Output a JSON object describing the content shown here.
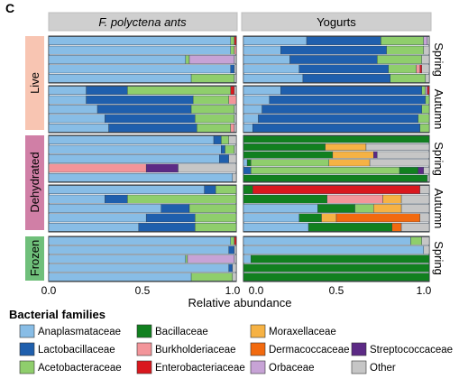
{
  "panel_letter": "C",
  "axis_label": "Relative abundance",
  "legend_title": "Bacterial families",
  "colors": {
    "Anaplasmataceae": "#88bde6",
    "Lactobacillaceae": "#1f5fad",
    "Acetobacteraceae": "#8fce6c",
    "Bacillaceae": "#11801f",
    "Burkholderiaceae": "#f3959a",
    "Enterobacteriaceae": "#d9181e",
    "Moraxellaceae": "#f6b244",
    "Dermacoccaceae": "#f26a0f",
    "Orbaceae": "#c7a3d6",
    "Streptococcaceae": "#5c2a85",
    "Other": "#c6c6c6"
  },
  "chart_data": {
    "type": "bar",
    "orientation": "horizontal-stacked",
    "xlabel": "Relative abundance",
    "xlim": [
      0,
      1
    ],
    "x_ticks": [
      "0.0",
      "0.5",
      "1.0"
    ],
    "columns": [
      "F. polyctena ants",
      "Yogurts"
    ],
    "row_groups": [
      "Live",
      "Dehydrated",
      "Frozen"
    ],
    "row_subgroups": [
      "Spring",
      "Autumn"
    ],
    "legend_items": [
      "Anaplasmataceae",
      "Lactobacillaceae",
      "Acetobacteraceae",
      "Bacillaceae",
      "Burkholderiaceae",
      "Enterobacteriaceae",
      "Moraxellaceae",
      "Dermacoccaceae",
      "Orbaceae",
      "Streptococcaceae",
      "Other"
    ],
    "panels": [
      {
        "column": "F. polyctena ants",
        "group": "Live",
        "season": "Spring",
        "bars": [
          [
            [
              "Anaplasmataceae",
              0.97
            ],
            [
              "Acetobacteraceae",
              0.02
            ],
            [
              "Enterobacteriaceae",
              0.01
            ]
          ],
          [
            [
              "Anaplasmataceae",
              0.97
            ],
            [
              "Acetobacteraceae",
              0.02
            ],
            [
              "Burkholderiaceae",
              0.01
            ]
          ],
          [
            [
              "Anaplasmataceae",
              0.73
            ],
            [
              "Acetobacteraceae",
              0.02
            ],
            [
              "Orbaceae",
              0.24
            ],
            [
              "Other",
              0.01
            ]
          ],
          [
            [
              "Anaplasmataceae",
              0.97
            ],
            [
              "Lactobacillaceae",
              0.02
            ],
            [
              "Other",
              0.01
            ]
          ],
          [
            [
              "Anaplasmataceae",
              0.76
            ],
            [
              "Acetobacteraceae",
              0.23
            ],
            [
              "Other",
              0.01
            ]
          ]
        ]
      },
      {
        "column": "F. polyctena ants",
        "group": "Live",
        "season": "Autumn",
        "bars": [
          [
            [
              "Anaplasmataceae",
              0.2
            ],
            [
              "Lactobacillaceae",
              0.22
            ],
            [
              "Acetobacteraceae",
              0.55
            ],
            [
              "Enterobacteriaceae",
              0.02
            ],
            [
              "Other",
              0.01
            ]
          ],
          [
            [
              "Anaplasmataceae",
              0.2
            ],
            [
              "Lactobacillaceae",
              0.57
            ],
            [
              "Acetobacteraceae",
              0.19
            ],
            [
              "Burkholderiaceae",
              0.04
            ]
          ],
          [
            [
              "Anaplasmataceae",
              0.26
            ],
            [
              "Lactobacillaceae",
              0.5
            ],
            [
              "Acetobacteraceae",
              0.23
            ],
            [
              "Other",
              0.01
            ]
          ],
          [
            [
              "Anaplasmataceae",
              0.3
            ],
            [
              "Lactobacillaceae",
              0.48
            ],
            [
              "Acetobacteraceae",
              0.21
            ],
            [
              "Other",
              0.01
            ]
          ],
          [
            [
              "Anaplasmataceae",
              0.32
            ],
            [
              "Lactobacillaceae",
              0.47
            ],
            [
              "Acetobacteraceae",
              0.18
            ],
            [
              "Burkholderiaceae",
              0.02
            ],
            [
              "Other",
              0.01
            ]
          ]
        ]
      },
      {
        "column": "F. polyctena ants",
        "group": "Dehydrated",
        "season": "Spring",
        "bars": [
          [
            [
              "Anaplasmataceae",
              0.88
            ],
            [
              "Lactobacillaceae",
              0.04
            ],
            [
              "Acetobacteraceae",
              0.04
            ],
            [
              "Other",
              0.04
            ]
          ],
          [
            [
              "Anaplasmataceae",
              0.92
            ],
            [
              "Lactobacillaceae",
              0.02
            ],
            [
              "Acetobacteraceae",
              0.05
            ],
            [
              "Other",
              0.01
            ]
          ],
          [
            [
              "Anaplasmataceae",
              0.91
            ],
            [
              "Lactobacillaceae",
              0.05
            ],
            [
              "Other",
              0.04
            ]
          ],
          [
            [
              "Burkholderiaceae",
              0.52
            ],
            [
              "Streptococcaceae",
              0.17
            ],
            [
              "Other",
              0.31
            ]
          ],
          [
            [
              "Anaplasmataceae",
              0.98
            ],
            [
              "Other",
              0.02
            ]
          ]
        ]
      },
      {
        "column": "F. polyctena ants",
        "group": "Dehydrated",
        "season": "Autumn",
        "bars": [
          [
            [
              "Anaplasmataceae",
              0.83
            ],
            [
              "Lactobacillaceae",
              0.06
            ],
            [
              "Acetobacteraceae",
              0.11
            ]
          ],
          [
            [
              "Anaplasmataceae",
              0.3
            ],
            [
              "Lactobacillaceae",
              0.12
            ],
            [
              "Acetobacteraceae",
              0.58
            ]
          ],
          [
            [
              "Anaplasmataceae",
              0.6
            ],
            [
              "Lactobacillaceae",
              0.15
            ],
            [
              "Acetobacteraceae",
              0.25
            ]
          ],
          [
            [
              "Anaplasmataceae",
              0.52
            ],
            [
              "Lactobacillaceae",
              0.26
            ],
            [
              "Acetobacteraceae",
              0.22
            ]
          ],
          [
            [
              "Anaplasmataceae",
              0.48
            ],
            [
              "Lactobacillaceae",
              0.3
            ],
            [
              "Acetobacteraceae",
              0.22
            ]
          ]
        ]
      },
      {
        "column": "F. polyctena ants",
        "group": "Frozen",
        "season": "Spring",
        "bars": [
          [
            [
              "Anaplasmataceae",
              0.97
            ],
            [
              "Acetobacteraceae",
              0.02
            ],
            [
              "Enterobacteriaceae",
              0.01
            ]
          ],
          [
            [
              "Anaplasmataceae",
              0.96
            ],
            [
              "Lactobacillaceae",
              0.03
            ],
            [
              "Other",
              0.01
            ]
          ],
          [
            [
              "Anaplasmataceae",
              0.73
            ],
            [
              "Acetobacteraceae",
              0.01
            ],
            [
              "Orbaceae",
              0.25
            ],
            [
              "Other",
              0.01
            ]
          ],
          [
            [
              "Anaplasmataceae",
              0.96
            ],
            [
              "Lactobacillaceae",
              0.02
            ],
            [
              "Other",
              0.02
            ]
          ],
          [
            [
              "Anaplasmataceae",
              0.76
            ],
            [
              "Acetobacteraceae",
              0.22
            ],
            [
              "Other",
              0.02
            ]
          ]
        ]
      },
      {
        "column": "Yogurts",
        "group": "Live",
        "season": "Spring",
        "bars": [
          [
            [
              "Anaplasmataceae",
              0.34
            ],
            [
              "Lactobacillaceae",
              0.4
            ],
            [
              "Acetobacteraceae",
              0.23
            ],
            [
              "Orbaceae",
              0.02
            ],
            [
              "Other",
              0.01
            ]
          ],
          [
            [
              "Anaplasmataceae",
              0.2
            ],
            [
              "Lactobacillaceae",
              0.57
            ],
            [
              "Acetobacteraceae",
              0.2
            ],
            [
              "Other",
              0.03
            ]
          ],
          [
            [
              "Anaplasmataceae",
              0.25
            ],
            [
              "Lactobacillaceae",
              0.47
            ],
            [
              "Acetobacteraceae",
              0.24
            ],
            [
              "Other",
              0.04
            ]
          ],
          [
            [
              "Anaplasmataceae",
              0.3
            ],
            [
              "Lactobacillaceae",
              0.48
            ],
            [
              "Acetobacteraceae",
              0.15
            ],
            [
              "Burkholderiaceae",
              0.02
            ],
            [
              "Enterobacteriaceae",
              0.01
            ],
            [
              "Other",
              0.04
            ]
          ],
          [
            [
              "Anaplasmataceae",
              0.32
            ],
            [
              "Lactobacillaceae",
              0.47
            ],
            [
              "Acetobacteraceae",
              0.19
            ],
            [
              "Other",
              0.02
            ]
          ]
        ]
      },
      {
        "column": "Yogurts",
        "group": "Live",
        "season": "Autumn",
        "bars": [
          [
            [
              "Anaplasmataceae",
              0.2
            ],
            [
              "Lactobacillaceae",
              0.76
            ],
            [
              "Acetobacteraceae",
              0.02
            ],
            [
              "Orbaceae",
              0.01
            ],
            [
              "Enterobacteriaceae",
              0.01
            ]
          ],
          [
            [
              "Anaplasmataceae",
              0.14
            ],
            [
              "Lactobacillaceae",
              0.84
            ],
            [
              "Acetobacteraceae",
              0.02
            ]
          ],
          [
            [
              "Anaplasmataceae",
              0.1
            ],
            [
              "Lactobacillaceae",
              0.86
            ],
            [
              "Acetobacteraceae",
              0.04
            ]
          ],
          [
            [
              "Anaplasmataceae",
              0.08
            ],
            [
              "Lactobacillaceae",
              0.86
            ],
            [
              "Acetobacteraceae",
              0.06
            ]
          ],
          [
            [
              "Anaplasmataceae",
              0.05
            ],
            [
              "Lactobacillaceae",
              0.9
            ],
            [
              "Acetobacteraceae",
              0.05
            ]
          ]
        ]
      },
      {
        "column": "Yogurts",
        "group": "Dehydrated",
        "season": "Spring",
        "bars": [
          [
            [
              "Bacillaceae",
              1.0
            ]
          ],
          [
            [
              "Bacillaceae",
              0.44
            ],
            [
              "Moraxellaceae",
              0.22
            ],
            [
              "Other",
              0.34
            ]
          ],
          [
            [
              "Bacillaceae",
              0.48
            ],
            [
              "Moraxellaceae",
              0.22
            ],
            [
              "Streptococcaceae",
              0.02
            ],
            [
              "Other",
              0.28
            ]
          ],
          [
            [
              "Anaplasmataceae",
              0.02
            ],
            [
              "Bacillaceae",
              0.02
            ],
            [
              "Acetobacteraceae",
              0.42
            ],
            [
              "Moraxellaceae",
              0.22
            ],
            [
              "Other",
              0.32
            ]
          ],
          [
            [
              "Lactobacillaceae",
              0.04
            ],
            [
              "Acetobacteraceae",
              0.8
            ],
            [
              "Bacillaceae",
              0.1
            ],
            [
              "Streptococcaceae",
              0.03
            ],
            [
              "Other",
              0.03
            ]
          ],
          [
            [
              "Bacillaceae",
              0.99
            ],
            [
              "Other",
              0.01
            ]
          ]
        ]
      },
      {
        "column": "Yogurts",
        "group": "Dehydrated",
        "season": "Autumn",
        "bars": [
          [
            [
              "Bacillaceae",
              0.05
            ],
            [
              "Enterobacteriaceae",
              0.9
            ],
            [
              "Other",
              0.05
            ]
          ],
          [
            [
              "Bacillaceae",
              0.45
            ],
            [
              "Burkholderiaceae",
              0.3
            ],
            [
              "Moraxellaceae",
              0.1
            ],
            [
              "Other",
              0.15
            ]
          ],
          [
            [
              "Anaplasmataceae",
              0.4
            ],
            [
              "Bacillaceae",
              0.2
            ],
            [
              "Acetobacteraceae",
              0.1
            ],
            [
              "Moraxellaceae",
              0.15
            ],
            [
              "Other",
              0.15
            ]
          ],
          [
            [
              "Anaplasmataceae",
              0.3
            ],
            [
              "Bacillaceae",
              0.12
            ],
            [
              "Moraxellaceae",
              0.08
            ],
            [
              "Dermacoccaceae",
              0.45
            ],
            [
              "Other",
              0.05
            ]
          ],
          [
            [
              "Anaplasmataceae",
              0.35
            ],
            [
              "Bacillaceae",
              0.45
            ],
            [
              "Dermacoccaceae",
              0.05
            ],
            [
              "Other",
              0.15
            ]
          ]
        ]
      },
      {
        "column": "Yogurts",
        "group": "Frozen",
        "season": "Spring",
        "bars": [
          [
            [
              "Anaplasmataceae",
              0.9
            ],
            [
              "Acetobacteraceae",
              0.06
            ],
            [
              "Other",
              0.04
            ]
          ],
          [
            [
              "Anaplasmataceae",
              0.97
            ],
            [
              "Other",
              0.03
            ]
          ],
          [
            [
              "Anaplasmataceae",
              0.04
            ],
            [
              "Bacillaceae",
              0.96
            ]
          ],
          [
            [
              "Bacillaceae",
              1.0
            ]
          ],
          [
            [
              "Bacillaceae",
              1.0
            ]
          ]
        ]
      }
    ]
  }
}
